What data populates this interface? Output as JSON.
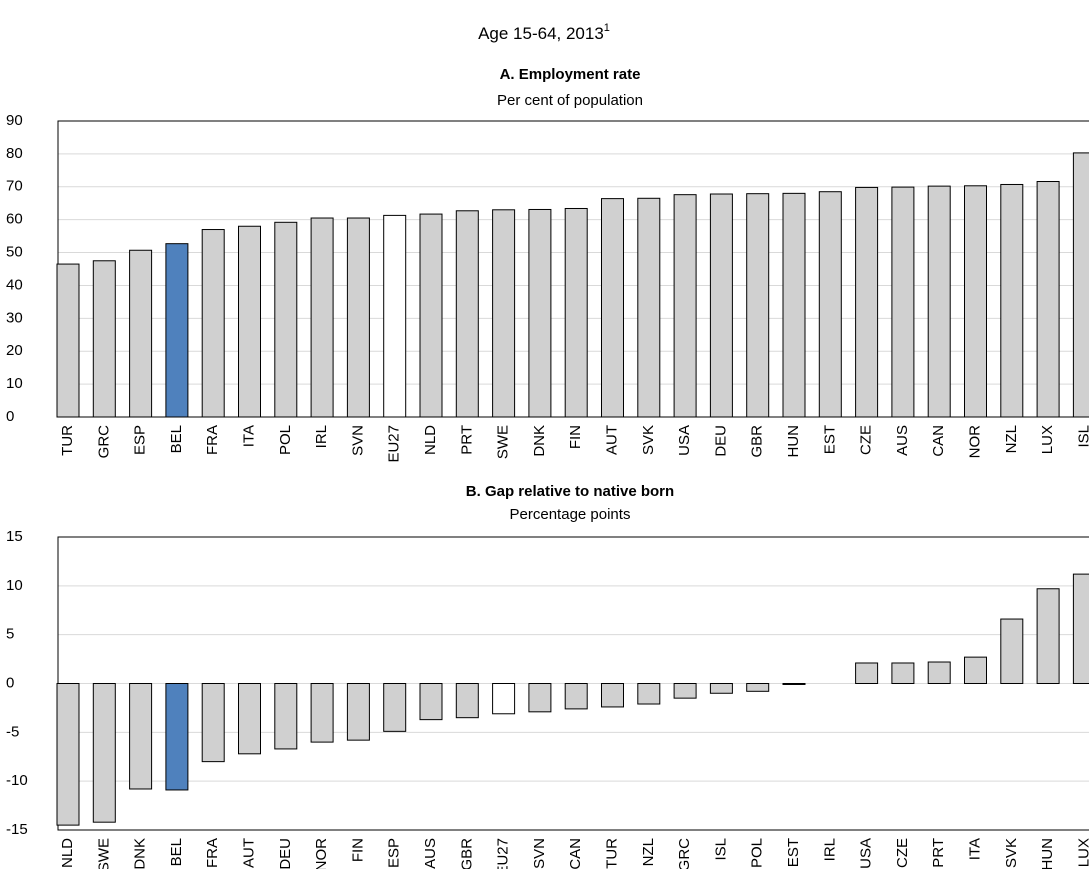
{
  "title": "Age 15-64, 2013",
  "title_note": "1",
  "chart_data": [
    {
      "type": "bar",
      "title": "A. Employment rate",
      "subtitle": "Per cent of population",
      "categories": [
        "TUR",
        "GRC",
        "ESP",
        "BEL",
        "FRA",
        "ITA",
        "POL",
        "IRL",
        "SVN",
        "EU27",
        "NLD",
        "PRT",
        "SWE",
        "DNK",
        "FIN",
        "AUT",
        "SVK",
        "USA",
        "DEU",
        "GBR",
        "HUN",
        "EST",
        "CZE",
        "AUS",
        "CAN",
        "NOR",
        "NZL",
        "LUX",
        "ISL"
      ],
      "values": [
        46.5,
        47.5,
        50.7,
        52.7,
        57,
        58,
        59.2,
        60.5,
        60.5,
        61.3,
        61.7,
        62.7,
        63,
        63.1,
        63.4,
        66.4,
        66.5,
        67.6,
        67.8,
        67.9,
        68,
        68.5,
        69.8,
        69.9,
        70.2,
        70.3,
        70.7,
        71.6,
        80.3
      ],
      "colors": [
        "#d0d0d0",
        "#d0d0d0",
        "#d0d0d0",
        "#4f81bd",
        "#d0d0d0",
        "#d0d0d0",
        "#d0d0d0",
        "#d0d0d0",
        "#d0d0d0",
        "#ffffff",
        "#d0d0d0",
        "#d0d0d0",
        "#d0d0d0",
        "#d0d0d0",
        "#d0d0d0",
        "#d0d0d0",
        "#d0d0d0",
        "#d0d0d0",
        "#d0d0d0",
        "#d0d0d0",
        "#d0d0d0",
        "#d0d0d0",
        "#d0d0d0",
        "#d0d0d0",
        "#d0d0d0",
        "#d0d0d0",
        "#d0d0d0",
        "#d0d0d0",
        "#d0d0d0"
      ],
      "ylim": [
        0,
        90
      ],
      "yticks": [
        0,
        10,
        20,
        30,
        40,
        50,
        60,
        70,
        80,
        90
      ],
      "grid": true
    },
    {
      "type": "bar",
      "title": "B. Gap relative to native born",
      "subtitle": "Percentage points",
      "categories": [
        "NLD",
        "SWE",
        "DNK",
        "BEL",
        "FRA",
        "AUT",
        "DEU",
        "NOR",
        "FIN",
        "ESP",
        "AUS",
        "GBR",
        "EU27",
        "SVN",
        "CAN",
        "TUR",
        "NZL",
        "GRC",
        "ISL",
        "POL",
        "EST",
        "IRL",
        "USA",
        "CZE",
        "PRT",
        "ITA",
        "SVK",
        "HUN",
        "LUX"
      ],
      "values": [
        -14.5,
        -14.2,
        -10.8,
        -10.9,
        -8,
        -7.2,
        -6.7,
        -6,
        -5.8,
        -4.9,
        -3.7,
        -3.5,
        -3.1,
        -2.9,
        -2.6,
        -2.4,
        -2.1,
        -1.5,
        -1,
        -0.8,
        -0.1,
        0,
        2.1,
        2.1,
        2.2,
        2.7,
        6.6,
        9.7,
        11.2
      ],
      "colors": [
        "#d0d0d0",
        "#d0d0d0",
        "#d0d0d0",
        "#4f81bd",
        "#d0d0d0",
        "#d0d0d0",
        "#d0d0d0",
        "#d0d0d0",
        "#d0d0d0",
        "#d0d0d0",
        "#d0d0d0",
        "#d0d0d0",
        "#ffffff",
        "#d0d0d0",
        "#d0d0d0",
        "#d0d0d0",
        "#d0d0d0",
        "#d0d0d0",
        "#d0d0d0",
        "#d0d0d0",
        "#d0d0d0",
        "#d0d0d0",
        "#d0d0d0",
        "#d0d0d0",
        "#d0d0d0",
        "#d0d0d0",
        "#d0d0d0",
        "#d0d0d0",
        "#d0d0d0"
      ],
      "ylim": [
        -15,
        15
      ],
      "yticks": [
        -15,
        -10,
        -5,
        0,
        5,
        10,
        15
      ],
      "grid": true
    }
  ]
}
